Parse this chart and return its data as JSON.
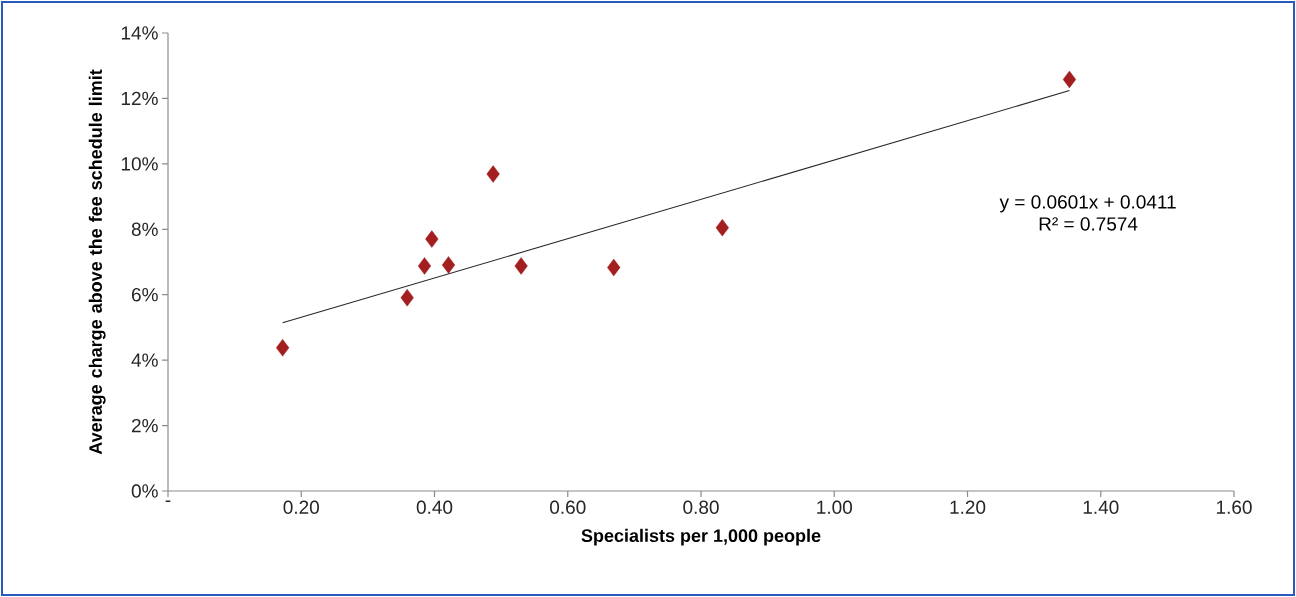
{
  "chart_data": {
    "type": "scatter",
    "xlabel": "Specialists per 1,000 people",
    "ylabel": "Average charge above the fee schedule limit",
    "series": [
      {
        "color": "#a31f1f",
        "marker": "diamond",
        "x": [
          0.172,
          0.359,
          0.385,
          0.396,
          0.421,
          0.488,
          0.53,
          0.669,
          0.832,
          1.353
        ],
        "values": [
          4.38,
          5.91,
          6.88,
          7.7,
          6.91,
          9.69,
          6.88,
          6.83,
          8.05,
          12.58
        ]
      },
      {
        "type": "line",
        "color": "#262626",
        "marker": "none",
        "line_style": "solid",
        "x": [
          0.172,
          1.353
        ],
        "values": [
          5.14,
          12.24
        ]
      }
    ],
    "xlim": [
      0,
      1.6
    ],
    "xticks": [
      {
        "value": 0,
        "label": "-"
      },
      {
        "value": 0.2,
        "label": "0.20"
      },
      {
        "value": 0.4,
        "label": "0.40"
      },
      {
        "value": 0.6,
        "label": "0.60"
      },
      {
        "value": 0.8,
        "label": "0.80"
      },
      {
        "value": 1.0,
        "label": "1.00"
      },
      {
        "value": 1.2,
        "label": "1.20"
      },
      {
        "value": 1.4,
        "label": "1.40"
      },
      {
        "value": 1.6,
        "label": "1.60"
      }
    ],
    "ylim": [
      0,
      14
    ],
    "yticks": [
      {
        "value": 0,
        "label": "0%"
      },
      {
        "value": 2,
        "label": "2%"
      },
      {
        "value": 4,
        "label": "4%"
      },
      {
        "value": 6,
        "label": "6%"
      },
      {
        "value": 8,
        "label": "8%"
      },
      {
        "value": 10,
        "label": "10%"
      },
      {
        "value": 12,
        "label": "12%"
      },
      {
        "value": 14,
        "label": "14%"
      }
    ],
    "annotations": [
      "y = 0.0601x + 0.0411",
      "R² = 0.7574"
    ]
  }
}
